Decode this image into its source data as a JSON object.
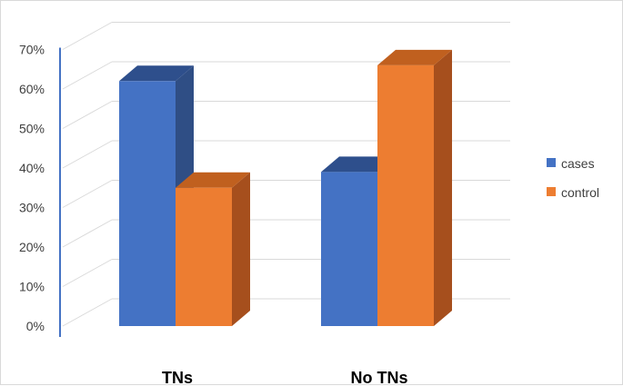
{
  "chart_data": {
    "type": "bar",
    "categories": [
      "TNs",
      "No TNs"
    ],
    "series": [
      {
        "name": "cases",
        "values": [
          62,
          39
        ]
      },
      {
        "name": "control",
        "values": [
          35,
          66
        ]
      }
    ],
    "y_ticks": [
      "0%",
      "10%",
      "20%",
      "30%",
      "40%",
      "50%",
      "60%",
      "70%"
    ],
    "ylim": [
      0,
      70
    ],
    "grid": true,
    "legend_position": "right",
    "colors": {
      "cases": "#4472C4",
      "cases_side": "#2F4E85",
      "cases_top": "#2E4F8C",
      "control": "#ED7D31",
      "control_side": "#A64F1D",
      "control_top": "#C0601F",
      "axis": "#4472C4",
      "grid": "#d9d9d9"
    }
  }
}
